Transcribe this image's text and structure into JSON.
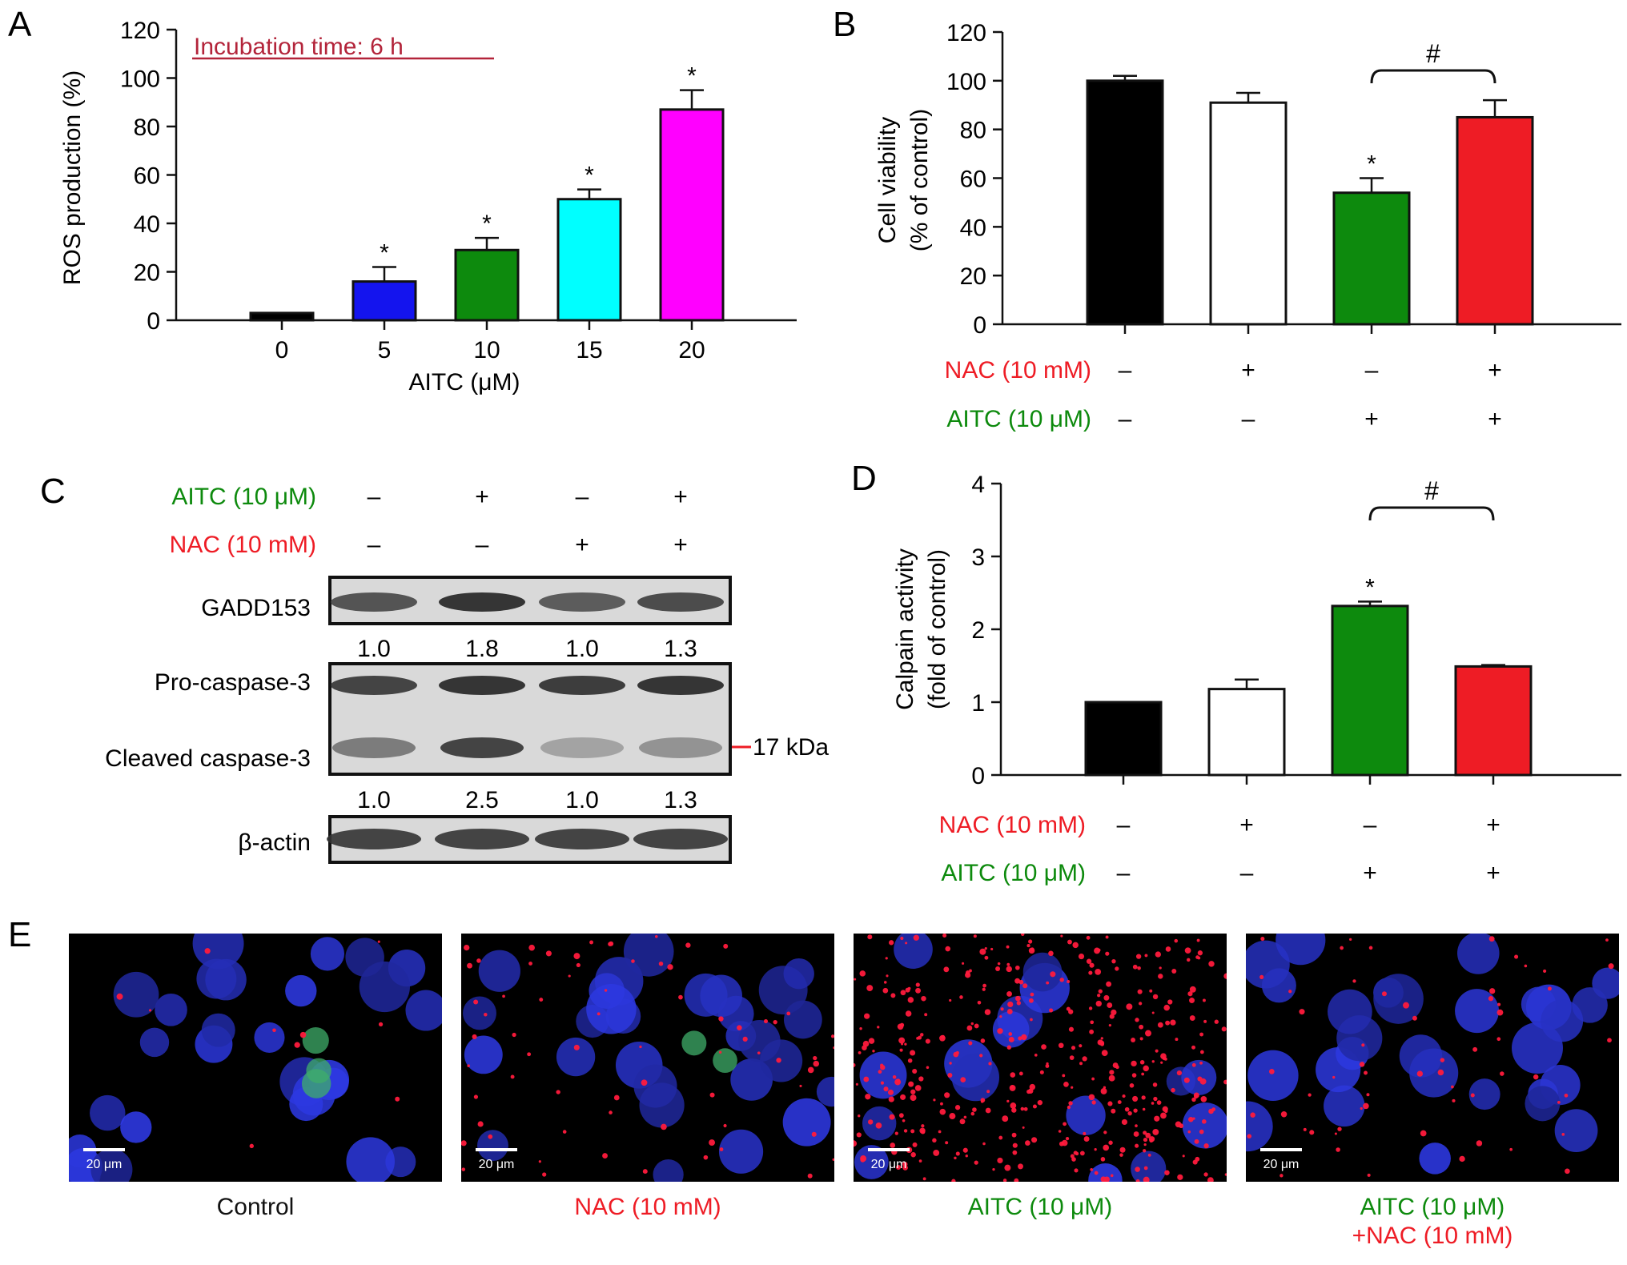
{
  "colors": {
    "red": "#ee1c25",
    "green": "#0d8a0d",
    "dark_red_annotation": "#b3243a",
    "black": "#000000",
    "blue": "#1414ee",
    "cyan": "#00ffff",
    "magenta": "#ff00ff",
    "white": "#ffffff"
  },
  "panel_labels": {
    "a": "A",
    "b": "B",
    "c": "C",
    "d": "D",
    "e": "E"
  },
  "chart_data": [
    {
      "panel": "A",
      "type": "bar",
      "annotation": "Incubation time: 6 h",
      "xlabel": "AITC (μM)",
      "ylabel": "ROS production (%)",
      "ylim": [
        0,
        120
      ],
      "yticks": [
        "0",
        "20",
        "40",
        "60",
        "80",
        "100",
        "120"
      ],
      "categories": [
        "0",
        "5",
        "10",
        "15",
        "20"
      ],
      "values": [
        3,
        16,
        29,
        50,
        87
      ],
      "errors": [
        0,
        6,
        5,
        4,
        8
      ],
      "bar_colors": [
        "#000000",
        "#1414ee",
        "#0d8a0d",
        "#00ffff",
        "#ff00ff"
      ],
      "significance": [
        "",
        "*",
        "*",
        "*",
        "*"
      ]
    },
    {
      "panel": "B",
      "type": "bar",
      "ylabel_lines": [
        "Cell viability",
        "(% of control)"
      ],
      "ylim": [
        0,
        120
      ],
      "yticks": [
        "0",
        "20",
        "40",
        "60",
        "80",
        "100",
        "120"
      ],
      "values": [
        100,
        91,
        54,
        85
      ],
      "errors": [
        2,
        4,
        6,
        7
      ],
      "bar_colors": [
        "#000000",
        "#ffffff",
        "#0d8a0d",
        "#ee1c25"
      ],
      "significance": [
        "",
        "",
        "*",
        ""
      ],
      "bracket": {
        "from": 2,
        "to": 3,
        "label": "#"
      },
      "treatment_rows": [
        {
          "label": "NAC (10 mM)",
          "color": "#ee1c25",
          "signs": [
            "–",
            "+",
            "–",
            "+"
          ]
        },
        {
          "label": "AITC (10 μM)",
          "color": "#0d8a0d",
          "signs": [
            "–",
            "–",
            "+",
            "+"
          ]
        }
      ]
    },
    {
      "panel": "D",
      "type": "bar",
      "ylabel_lines": [
        "Calpain activity",
        "(fold of control)"
      ],
      "ylim": [
        0,
        4
      ],
      "yticks": [
        "0",
        "1",
        "2",
        "3",
        "4"
      ],
      "values": [
        1.0,
        1.18,
        2.32,
        1.49
      ],
      "errors": [
        0,
        0.13,
        0.06,
        0.02
      ],
      "bar_colors": [
        "#000000",
        "#ffffff",
        "#0d8a0d",
        "#ee1c25"
      ],
      "significance": [
        "",
        "",
        "*",
        ""
      ],
      "bracket": {
        "from": 2,
        "to": 3,
        "label": "#"
      },
      "treatment_rows": [
        {
          "label": "NAC (10 mM)",
          "color": "#ee1c25",
          "signs": [
            "–",
            "+",
            "–",
            "+"
          ]
        },
        {
          "label": "AITC (10 μM)",
          "color": "#0d8a0d",
          "signs": [
            "–",
            "–",
            "+",
            "+"
          ]
        }
      ]
    }
  ],
  "western_blot": {
    "treatment_rows": [
      {
        "label": "AITC (10 μM)",
        "color": "#0d8a0d",
        "signs": [
          "–",
          "+",
          "–",
          "+"
        ]
      },
      {
        "label": "NAC (10 mM)",
        "color": "#ee1c25",
        "signs": [
          "–",
          "–",
          "+",
          "+"
        ]
      }
    ],
    "gadd153": {
      "label": "GADD153",
      "quant": [
        "1.0",
        "1.8",
        "1.0",
        "1.3"
      ],
      "intensity": [
        0.75,
        0.95,
        0.7,
        0.8
      ]
    },
    "pro_caspase": {
      "label": "Pro-caspase-3",
      "intensity": [
        0.85,
        0.95,
        0.9,
        0.95
      ]
    },
    "cleaved_caspase": {
      "label": "Cleaved caspase-3",
      "quant": [
        "1.0",
        "2.5",
        "1.0",
        "1.3"
      ],
      "intensity": [
        0.5,
        0.85,
        0.25,
        0.35
      ]
    },
    "marker": "17 kDa",
    "actin": {
      "label": "β-actin",
      "intensity": [
        0.85,
        0.85,
        0.85,
        0.85
      ]
    }
  },
  "micrographs": [
    {
      "caption": "Control",
      "caption_color": "#111111",
      "scale": "20 μm",
      "red_dots": 10,
      "green_cells": 3
    },
    {
      "caption": "NAC (10 mM)",
      "caption_color": "#ee1c25",
      "scale": "20 μm",
      "red_dots": 70,
      "green_cells": 2
    },
    {
      "caption": "AITC (10 μM)",
      "caption_color": "#0d8a0d",
      "scale": "20 μm",
      "red_dots": 420,
      "green_cells": 0
    },
    {
      "caption_lines": [
        "AITC (10 μM)",
        "+NAC (10  mM)"
      ],
      "caption_color": "#0d8a0d",
      "caption2_color": "#ee1c25",
      "scale": "20 μm",
      "red_dots": 60,
      "green_cells": 0
    }
  ]
}
